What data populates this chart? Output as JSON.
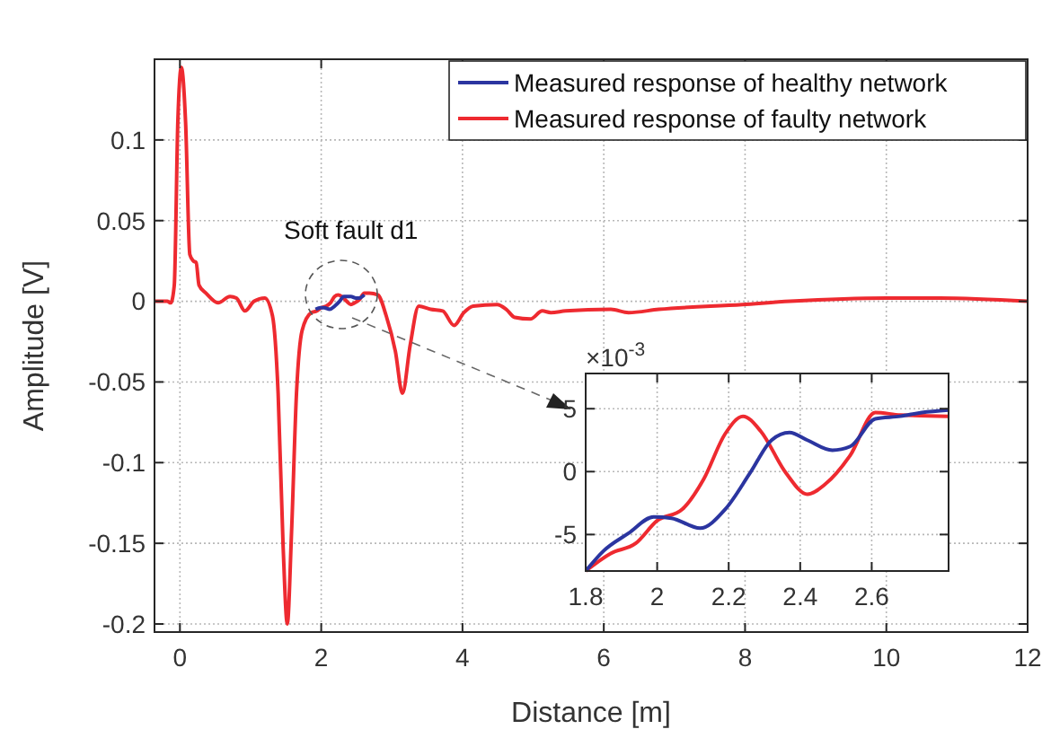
{
  "chart_data": [
    {
      "type": "line",
      "xlabel": "Distance [m]",
      "ylabel": "Amplitude [V]",
      "xlim": [
        -0.36,
        12
      ],
      "ylim": [
        -0.205,
        0.15
      ],
      "xticks": [
        0,
        2,
        4,
        6,
        8,
        10,
        12
      ],
      "yticks": [
        -0.2,
        -0.15,
        -0.1,
        -0.05,
        0,
        0.05,
        0.1
      ],
      "grid": true,
      "legend": "top right",
      "line_style": "solid",
      "annotations": [
        "Soft fault d1"
      ],
      "series": [
        {
          "name": "Measured response of healthy network",
          "color": "#2b35a0",
          "x": [
            1.92,
            1.99,
            2.04,
            2.12,
            2.19,
            2.26,
            2.32,
            2.37,
            2.42,
            2.49,
            2.54,
            2.61
          ],
          "values": [
            -0.005,
            -0.004,
            -0.004,
            -0.005,
            -0.003,
            0,
            0.003,
            0.003,
            0.003,
            0.002,
            0.002,
            0.004
          ]
        },
        {
          "name": "Measured response of faulty network",
          "color": "#ee2a30",
          "x": [
            -0.36,
            -0.18,
            -0.13,
            -0.08,
            -0.03,
            0.02,
            0.08,
            0.14,
            0.19,
            0.23,
            0.27,
            0.37,
            0.54,
            0.71,
            0.8,
            0.92,
            1.05,
            1.2,
            1.31,
            1.39,
            1.46,
            1.52,
            1.58,
            1.65,
            1.73,
            1.86,
            1.94,
            2.0,
            2.07,
            2.13,
            2.19,
            2.24,
            2.29,
            2.36,
            2.42,
            2.47,
            2.54,
            2.61,
            2.68,
            2.8,
            2.92,
            3.05,
            3.15,
            3.26,
            3.38,
            3.55,
            3.72,
            3.88,
            4.02,
            4.15,
            4.49,
            4.62,
            4.74,
            4.96,
            5.13,
            5.25,
            5.46,
            6.1,
            6.35,
            6.78,
            7.96,
            8.64,
            10.0,
            10.76,
            12
          ],
          "values": [
            0,
            0,
            -0.001,
            0.01,
            0.111,
            0.145,
            0.111,
            0.029,
            0.025,
            0.024,
            0.01,
            0.005,
            -0.001,
            0.003,
            0.002,
            -0.006,
            0,
            0.002,
            -0.009,
            -0.057,
            -0.151,
            -0.2,
            -0.143,
            -0.057,
            -0.018,
            -0.007,
            -0.006,
            -0.004,
            -0.003,
            -0.001,
            0.003,
            0.004,
            0.003,
            0,
            -0.002,
            -0.001,
            0.001,
            0.005,
            0.005,
            0.004,
            -0.009,
            -0.031,
            -0.057,
            -0.027,
            -0.003,
            -0.005,
            -0.006,
            -0.015,
            -0.007,
            -0.003,
            -0.002,
            -0.005,
            -0.01,
            -0.011,
            -0.006,
            -0.007,
            -0.006,
            -0.005,
            -0.007,
            -0.005,
            -0.002,
            0,
            0.002,
            0.002,
            0
          ]
        }
      ]
    },
    {
      "type": "line",
      "xlim": [
        1.8,
        2.815
      ],
      "ylim": [
        -7.9,
        7.8
      ],
      "xticks": [
        1.8,
        2,
        2.2,
        2.4,
        2.6
      ],
      "yticks": [
        -5,
        0,
        5
      ],
      "grid": true,
      "line_style": "solid",
      "annotations": [
        "×10$^{-3}$"
      ],
      "series": [
        {
          "color": "#2b35a0",
          "x": [
            1.8,
            1.85,
            1.92,
            1.99,
            2.04,
            2.12,
            2.19,
            2.26,
            2.32,
            2.37,
            2.42,
            2.49,
            2.54,
            2.61,
            2.68,
            2.74,
            2.815
          ],
          "values": [
            -7.9,
            -6.3,
            -4.9,
            -3.6,
            -3.7,
            -4.5,
            -3.0,
            -0.1,
            2.5,
            3.1,
            2.5,
            1.7,
            2.0,
            4.2,
            4.4,
            4.7,
            4.9
          ]
        },
        {
          "color": "#ee2a30",
          "x": [
            1.8,
            1.87,
            1.94,
            2.0,
            2.07,
            2.13,
            2.19,
            2.24,
            2.29,
            2.36,
            2.42,
            2.47,
            2.54,
            2.61,
            2.68,
            2.815
          ],
          "values": [
            -7.9,
            -6.5,
            -5.7,
            -3.9,
            -3.0,
            -0.6,
            3.0,
            4.4,
            3.2,
            -0.1,
            -1.8,
            -1.0,
            1.3,
            4.7,
            4.5,
            4.4
          ]
        }
      ]
    }
  ]
}
